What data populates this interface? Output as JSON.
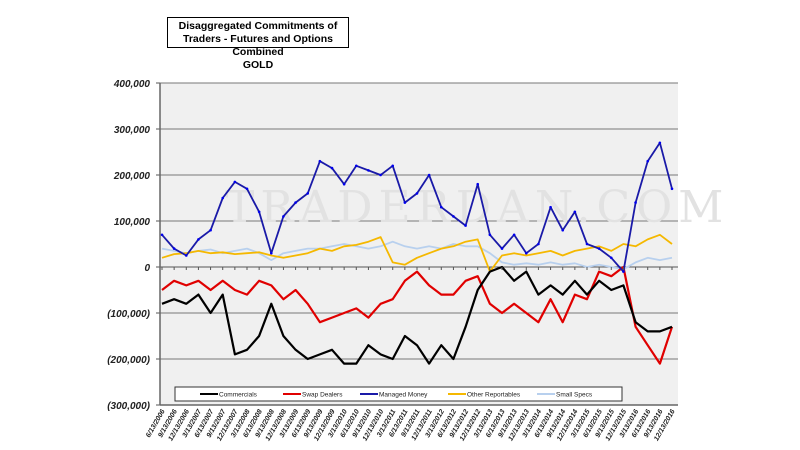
{
  "chart_data": {
    "type": "line",
    "title": "Disaggregated Commitments of Traders - Futures and Options Combined",
    "subtitle": "GOLD",
    "watermark": "TRADERDAN.COM",
    "xlabel": "",
    "ylabel": "",
    "ylim": [
      -300000,
      400000
    ],
    "yticks": [
      400000,
      300000,
      200000,
      100000,
      0,
      -100000,
      -200000,
      -300000
    ],
    "ytick_labels": [
      "400,000",
      "300,000",
      "200,000",
      "100,000",
      "0",
      "(100,000)",
      "(200,000)",
      "(300,000)"
    ],
    "grid": true,
    "legend_position": "bottom",
    "x": [
      "6/13/2006",
      "9/13/2006",
      "12/13/2006",
      "3/13/2007",
      "6/13/2007",
      "9/13/2007",
      "12/13/2007",
      "3/13/2008",
      "6/13/2008",
      "9/13/2008",
      "12/13/2008",
      "3/13/2009",
      "6/13/2009",
      "9/13/2009",
      "12/13/2009",
      "3/13/2010",
      "6/13/2010",
      "9/13/2010",
      "12/13/2010",
      "3/13/2011",
      "6/13/2011",
      "9/13/2011",
      "12/13/2011",
      "3/13/2012",
      "6/13/2012",
      "9/13/2012",
      "12/13/2012",
      "3/13/2013",
      "6/13/2013",
      "9/13/2013",
      "12/13/2013",
      "3/13/2014",
      "6/13/2014",
      "9/13/2014",
      "12/13/2014",
      "3/13/2015",
      "6/13/2015",
      "9/13/2015",
      "12/13/2015",
      "3/13/2016",
      "6/13/2016",
      "9/13/2016",
      "12/13/2016"
    ],
    "series": [
      {
        "name": "Small Specs",
        "color": "#b8d0ee",
        "values": [
          40000,
          35000,
          30000,
          35000,
          38000,
          30000,
          35000,
          40000,
          30000,
          15000,
          30000,
          35000,
          40000,
          40000,
          45000,
          50000,
          45000,
          40000,
          45000,
          55000,
          45000,
          40000,
          45000,
          40000,
          50000,
          45000,
          45000,
          30000,
          10000,
          5000,
          8000,
          5000,
          10000,
          5000,
          8000,
          0,
          5000,
          0,
          -5000,
          10000,
          20000,
          15000,
          20000
        ]
      },
      {
        "name": "Other Reportables",
        "color": "#f5b800",
        "values": [
          20000,
          28000,
          30000,
          35000,
          30000,
          32000,
          28000,
          30000,
          32000,
          25000,
          20000,
          25000,
          30000,
          40000,
          35000,
          45000,
          48000,
          55000,
          65000,
          10000,
          5000,
          20000,
          30000,
          40000,
          45000,
          55000,
          60000,
          -10000,
          25000,
          30000,
          25000,
          30000,
          35000,
          25000,
          35000,
          40000,
          45000,
          35000,
          50000,
          45000,
          60000,
          70000,
          50000
        ]
      },
      {
        "name": "Swap Dealers",
        "color": "#e00000",
        "values": [
          -50000,
          -30000,
          -40000,
          -30000,
          -50000,
          -30000,
          -50000,
          -60000,
          -30000,
          -40000,
          -70000,
          -50000,
          -80000,
          -120000,
          -110000,
          -100000,
          -90000,
          -110000,
          -80000,
          -70000,
          -30000,
          -10000,
          -40000,
          -60000,
          -60000,
          -30000,
          -20000,
          -80000,
          -100000,
          -80000,
          -100000,
          -120000,
          -70000,
          -120000,
          -60000,
          -70000,
          -10000,
          -20000,
          0,
          -130000,
          -170000,
          -210000,
          -130000
        ]
      },
      {
        "name": "Commercials",
        "color": "#000000",
        "values": [
          -80000,
          -70000,
          -80000,
          -60000,
          -100000,
          -60000,
          -190000,
          -180000,
          -150000,
          -80000,
          -150000,
          -180000,
          -200000,
          -190000,
          -180000,
          -210000,
          -210000,
          -170000,
          -190000,
          -200000,
          -150000,
          -170000,
          -210000,
          -170000,
          -200000,
          -130000,
          -50000,
          -10000,
          0,
          -30000,
          -10000,
          -60000,
          -40000,
          -60000,
          -30000,
          -60000,
          -30000,
          -50000,
          -40000,
          -120000,
          -140000,
          -140000,
          -130000
        ]
      },
      {
        "name": "Managed Money",
        "color": "#1a1aa8",
        "values": [
          70000,
          40000,
          25000,
          60000,
          80000,
          150000,
          185000,
          170000,
          120000,
          30000,
          110000,
          140000,
          160000,
          230000,
          215000,
          180000,
          220000,
          210000,
          200000,
          220000,
          140000,
          160000,
          200000,
          130000,
          110000,
          90000,
          180000,
          70000,
          40000,
          70000,
          30000,
          50000,
          130000,
          80000,
          120000,
          50000,
          40000,
          20000,
          -10000,
          140000,
          230000,
          270000,
          170000
        ]
      }
    ],
    "legend_order": [
      "Commercials",
      "Swap Dealers",
      "Managed Money",
      "Other Reportables",
      "Small Specs"
    ]
  }
}
